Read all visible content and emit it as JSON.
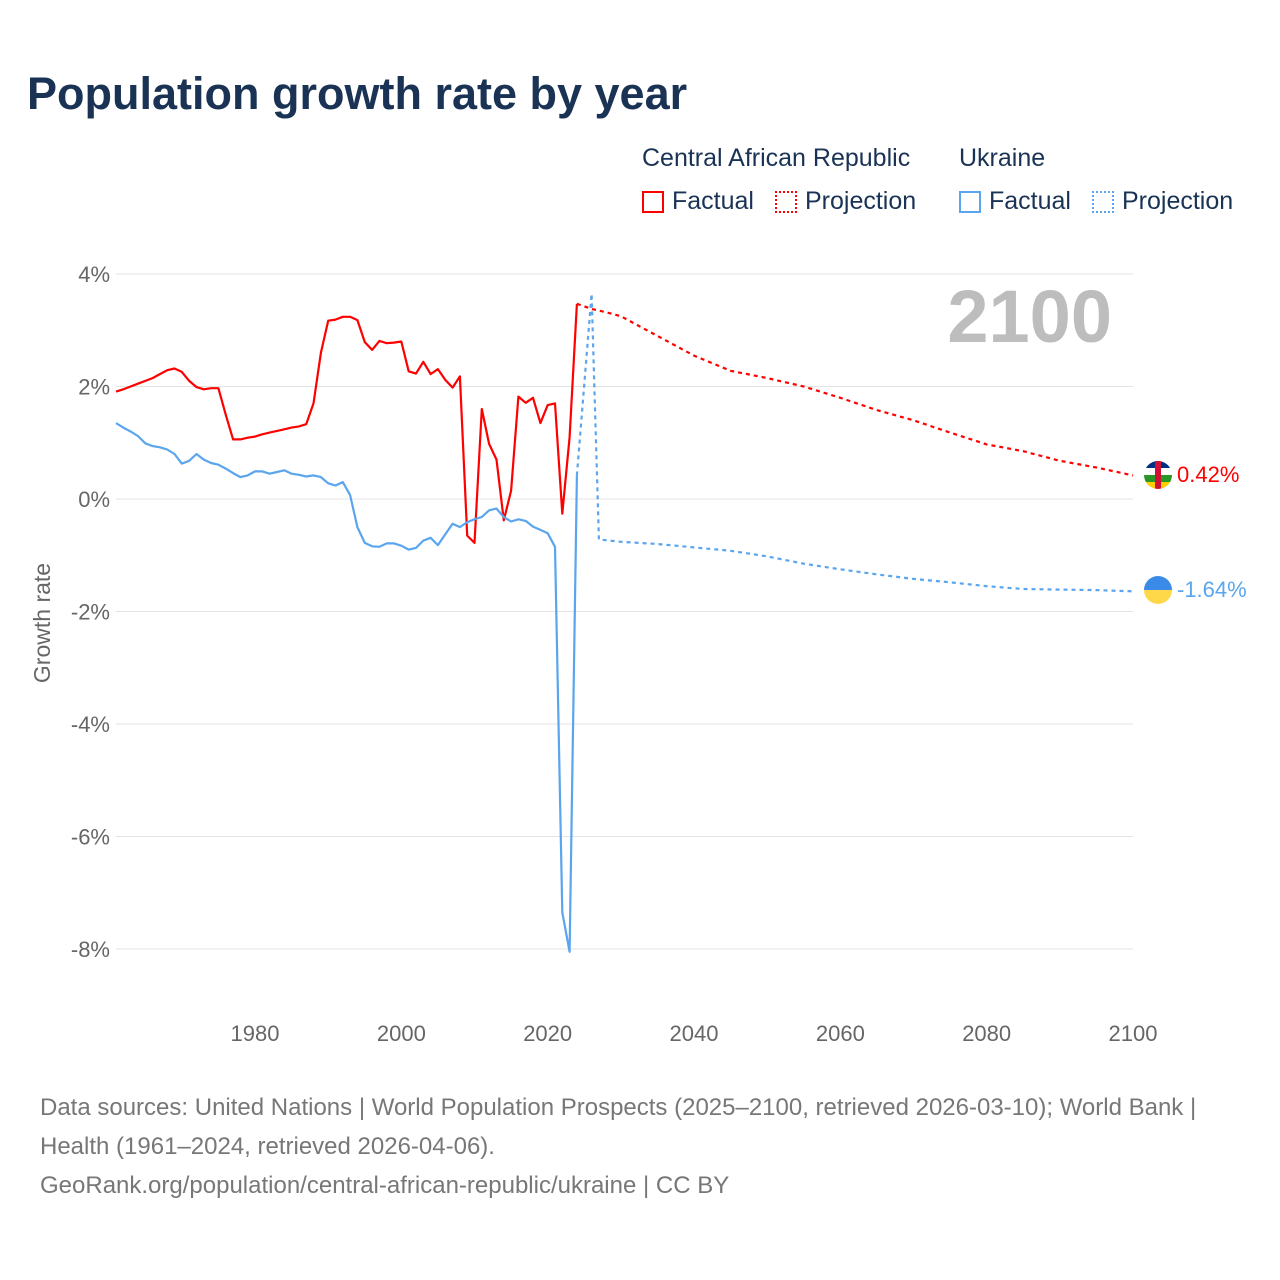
{
  "title": "Population growth rate by year",
  "legend": {
    "groups": [
      {
        "name": "Central African Republic",
        "color": "#ff0000",
        "items": [
          "Factual",
          "Projection"
        ]
      },
      {
        "name": "Ukraine",
        "color": "#5aa5ee",
        "items": [
          "Factual",
          "Projection"
        ]
      }
    ]
  },
  "year_label": "2100",
  "end_labels": {
    "car": "0.42%",
    "ukraine": "-1.64%"
  },
  "footer": {
    "sources": "Data sources: United Nations | World Population Prospects (2025–2100, retrieved 2026-03-10); World Bank | Health (1961–2024, retrieved 2026-04-06).",
    "credit": "GeoRank.org/population/central-african-republic/ukraine | CC BY"
  },
  "chart_data": {
    "type": "line",
    "title": "Population growth rate by year",
    "xlabel": "",
    "ylabel": "Growth rate",
    "xlim": [
      1961,
      2100
    ],
    "ylim": [
      -9,
      4.5
    ],
    "xticks": [
      1980,
      2000,
      2020,
      2040,
      2060,
      2080,
      2100
    ],
    "xtick_labels": [
      "1980",
      "2000",
      "2020",
      "2040",
      "2060",
      "2080",
      "2100"
    ],
    "yticks": [
      4,
      2,
      0,
      -2,
      -4,
      -6,
      -8
    ],
    "ytick_labels": [
      "4%",
      "2%",
      "0%",
      "-2%",
      "-4%",
      "-6%",
      "-8%"
    ],
    "grid": true,
    "legend_position": "top-right",
    "series": [
      {
        "name": "Central African Republic – Factual",
        "color": "#ff0000",
        "style": "solid",
        "x_start": 1961,
        "values": [
          1.91,
          1.95,
          2.0,
          2.05,
          2.1,
          2.15,
          2.22,
          2.29,
          2.32,
          2.26,
          2.1,
          1.99,
          1.95,
          1.97,
          1.97,
          1.5,
          1.06,
          1.06,
          1.09,
          1.11,
          1.15,
          1.18,
          1.21,
          1.24,
          1.27,
          1.29,
          1.33,
          1.7,
          2.6,
          3.17,
          3.19,
          3.24,
          3.24,
          3.18,
          2.79,
          2.65,
          2.81,
          2.77,
          2.78,
          2.8,
          2.27,
          2.23,
          2.44,
          2.22,
          2.31,
          2.12,
          1.98,
          2.18,
          -0.65,
          -0.78,
          1.6,
          0.98,
          0.7,
          -0.38,
          0.15,
          1.82,
          1.71,
          1.8,
          1.35,
          1.67,
          1.7,
          -0.26,
          1.1,
          3.47
        ]
      },
      {
        "name": "Central African Republic – Projection",
        "color": "#ff0000",
        "style": "dotted",
        "x": [
          2024,
          2026,
          2028,
          2030,
          2035,
          2040,
          2045,
          2050,
          2055,
          2060,
          2065,
          2070,
          2075,
          2080,
          2085,
          2090,
          2095,
          2100
        ],
        "values": [
          3.47,
          3.38,
          3.32,
          3.25,
          2.9,
          2.55,
          2.28,
          2.15,
          2.0,
          1.8,
          1.58,
          1.4,
          1.18,
          0.97,
          0.85,
          0.68,
          0.56,
          0.42
        ]
      },
      {
        "name": "Ukraine – Factual",
        "color": "#5aa5ee",
        "style": "solid",
        "x_start": 1961,
        "values": [
          1.35,
          1.27,
          1.2,
          1.12,
          0.99,
          0.94,
          0.92,
          0.88,
          0.8,
          0.63,
          0.68,
          0.8,
          0.7,
          0.64,
          0.61,
          0.54,
          0.46,
          0.39,
          0.42,
          0.49,
          0.49,
          0.45,
          0.48,
          0.51,
          0.45,
          0.43,
          0.4,
          0.42,
          0.39,
          0.28,
          0.24,
          0.3,
          0.07,
          -0.5,
          -0.78,
          -0.84,
          -0.85,
          -0.79,
          -0.79,
          -0.83,
          -0.9,
          -0.87,
          -0.74,
          -0.69,
          -0.82,
          -0.63,
          -0.44,
          -0.5,
          -0.41,
          -0.36,
          -0.32,
          -0.2,
          -0.17,
          -0.32,
          -0.4,
          -0.36,
          -0.39,
          -0.49,
          -0.55,
          -0.61,
          -0.85,
          -7.35,
          -8.05,
          0.42
        ]
      },
      {
        "name": "Ukraine – Projection",
        "color": "#5aa5ee",
        "style": "dotted",
        "x": [
          2024,
          2026,
          2027,
          2030,
          2035,
          2040,
          2045,
          2050,
          2055,
          2060,
          2065,
          2070,
          2075,
          2080,
          2085,
          2090,
          2095,
          2100
        ],
        "values": [
          0.42,
          3.65,
          -0.72,
          -0.76,
          -0.8,
          -0.86,
          -0.92,
          -1.02,
          -1.15,
          -1.25,
          -1.34,
          -1.42,
          -1.48,
          -1.55,
          -1.6,
          -1.61,
          -1.62,
          -1.64
        ]
      }
    ]
  }
}
